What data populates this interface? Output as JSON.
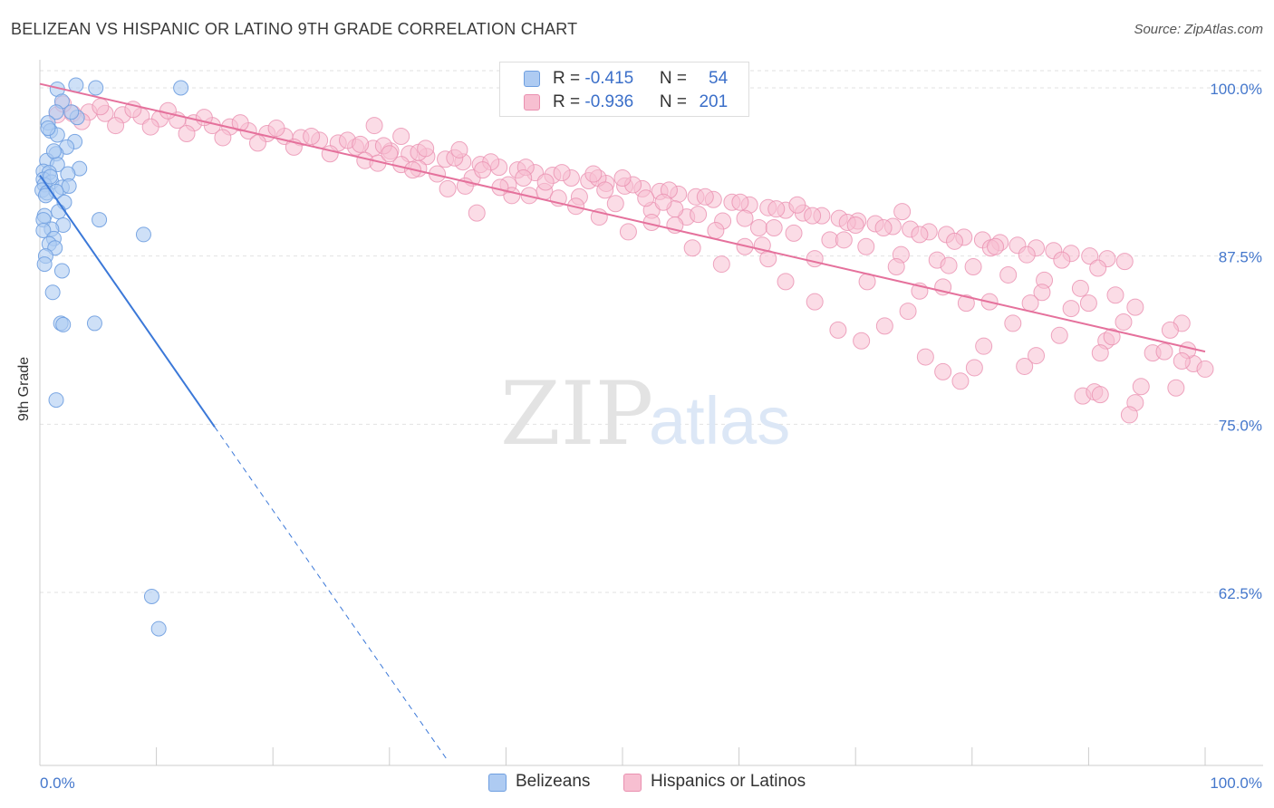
{
  "title": "BELIZEAN VS HISPANIC OR LATINO 9TH GRADE CORRELATION CHART",
  "source": "Source: ZipAtlas.com",
  "watermark": {
    "zip": "ZIP",
    "atlas": "atlas"
  },
  "colors": {
    "belizean_fill": "#aecbf2",
    "belizean_stroke": "#6f9fe0",
    "belizean_line": "#3b78d8",
    "hispanic_fill": "#f7bfd1",
    "hispanic_stroke": "#ea90b0",
    "hispanic_line": "#e5719c",
    "axis_label": "#4477cc"
  },
  "legend_top": {
    "rows": [
      {
        "r_label": "R = ",
        "r_value": "-0.415",
        "n_label": "N = ",
        "n_value": "54"
      },
      {
        "r_label": "R = ",
        "r_value": "-0.936",
        "n_label": "N = ",
        "n_value": "201"
      }
    ]
  },
  "legend_bottom": {
    "items": [
      "Belizeans",
      "Hispanics or Latinos"
    ]
  },
  "chart_data": {
    "type": "scatter",
    "title": "BELIZEAN VS HISPANIC OR LATINO 9TH GRADE CORRELATION CHART",
    "xlabel": "",
    "ylabel": "9th Grade",
    "xlim": [
      0,
      100
    ],
    "ylim": [
      50,
      102
    ],
    "x_tick_labels": [
      "0.0%",
      "100.0%"
    ],
    "y_ticks": [
      100,
      87.5,
      75,
      62.5
    ],
    "y_tick_labels": [
      "100.0%",
      "87.5%",
      "75.0%",
      "62.5%"
    ],
    "grid": true,
    "legend_placement": "top-center",
    "series": [
      {
        "name": "Belizeans",
        "R": -0.415,
        "N": 54,
        "trend": {
          "x": [
            0,
            15
          ],
          "y": [
            93.5,
            74.8
          ],
          "dashed_to": [
            35,
            50
          ]
        },
        "points": [
          [
            3.1,
            100.2
          ],
          [
            12.1,
            100.0
          ],
          [
            4.8,
            100.0
          ],
          [
            1.5,
            99.9
          ],
          [
            1.9,
            99.0
          ],
          [
            1.4,
            98.2
          ],
          [
            3.2,
            97.8
          ],
          [
            2.7,
            98.2
          ],
          [
            0.7,
            97.4
          ],
          [
            0.9,
            96.8
          ],
          [
            1.5,
            96.5
          ],
          [
            3.0,
            96.0
          ],
          [
            2.3,
            95.6
          ],
          [
            1.4,
            95.1
          ],
          [
            0.6,
            94.6
          ],
          [
            1.5,
            94.3
          ],
          [
            3.4,
            94.0
          ],
          [
            0.3,
            93.8
          ],
          [
            0.8,
            93.7
          ],
          [
            2.4,
            93.6
          ],
          [
            0.3,
            93.2
          ],
          [
            1.0,
            93.0
          ],
          [
            0.4,
            92.8
          ],
          [
            1.9,
            92.6
          ],
          [
            2.5,
            92.7
          ],
          [
            0.2,
            92.4
          ],
          [
            0.6,
            92.2
          ],
          [
            1.4,
            92.3
          ],
          [
            0.5,
            92.0
          ],
          [
            2.1,
            91.5
          ],
          [
            1.6,
            90.8
          ],
          [
            0.4,
            90.5
          ],
          [
            0.3,
            90.2
          ],
          [
            5.1,
            90.2
          ],
          [
            2.0,
            89.8
          ],
          [
            1.0,
            89.5
          ],
          [
            0.3,
            89.4
          ],
          [
            1.2,
            88.8
          ],
          [
            8.9,
            89.1
          ],
          [
            0.8,
            88.4
          ],
          [
            1.3,
            88.1
          ],
          [
            0.5,
            87.5
          ],
          [
            0.4,
            86.9
          ],
          [
            1.9,
            86.4
          ],
          [
            1.1,
            84.8
          ],
          [
            1.8,
            82.5
          ],
          [
            2.0,
            82.4
          ],
          [
            4.7,
            82.5
          ],
          [
            1.4,
            76.8
          ],
          [
            9.6,
            62.2
          ],
          [
            10.2,
            59.8
          ],
          [
            0.7,
            97.0
          ],
          [
            1.2,
            95.3
          ],
          [
            0.9,
            93.4
          ]
        ]
      },
      {
        "name": "Hispanics or Latinos",
        "R": -0.936,
        "N": 201,
        "trend": {
          "x": [
            0,
            100
          ],
          "y": [
            100.3,
            80.4
          ]
        },
        "points": [
          [
            1.5,
            98.0
          ],
          [
            2.8,
            98.1
          ],
          [
            4.2,
            98.2
          ],
          [
            5.6,
            98.1
          ],
          [
            7.1,
            98.0
          ],
          [
            8.7,
            97.9
          ],
          [
            10.3,
            97.7
          ],
          [
            11.8,
            97.6
          ],
          [
            13.2,
            97.4
          ],
          [
            14.8,
            97.2
          ],
          [
            16.3,
            97.1
          ],
          [
            17.9,
            96.8
          ],
          [
            19.5,
            96.6
          ],
          [
            21.0,
            96.4
          ],
          [
            22.4,
            96.3
          ],
          [
            24.0,
            96.1
          ],
          [
            25.6,
            95.9
          ],
          [
            27.1,
            95.6
          ],
          [
            28.6,
            95.5
          ],
          [
            30.1,
            95.3
          ],
          [
            31.7,
            95.1
          ],
          [
            33.2,
            94.9
          ],
          [
            34.8,
            94.7
          ],
          [
            36.3,
            94.5
          ],
          [
            37.8,
            94.3
          ],
          [
            39.4,
            94.1
          ],
          [
            41.0,
            93.9
          ],
          [
            42.5,
            93.7
          ],
          [
            44.0,
            93.5
          ],
          [
            45.6,
            93.3
          ],
          [
            47.1,
            93.1
          ],
          [
            48.6,
            92.9
          ],
          [
            50.2,
            92.7
          ],
          [
            51.7,
            92.5
          ],
          [
            53.2,
            92.3
          ],
          [
            54.8,
            92.1
          ],
          [
            56.3,
            91.9
          ],
          [
            57.8,
            91.7
          ],
          [
            59.4,
            91.5
          ],
          [
            60.9,
            91.3
          ],
          [
            62.5,
            91.1
          ],
          [
            64.0,
            90.9
          ],
          [
            65.5,
            90.7
          ],
          [
            67.1,
            90.5
          ],
          [
            68.6,
            90.3
          ],
          [
            70.2,
            90.1
          ],
          [
            71.7,
            89.9
          ],
          [
            73.2,
            89.7
          ],
          [
            74.7,
            89.5
          ],
          [
            76.3,
            89.3
          ],
          [
            77.8,
            89.1
          ],
          [
            79.3,
            88.9
          ],
          [
            80.9,
            88.7
          ],
          [
            82.4,
            88.5
          ],
          [
            83.9,
            88.3
          ],
          [
            85.5,
            88.1
          ],
          [
            87.0,
            87.9
          ],
          [
            88.5,
            87.7
          ],
          [
            90.1,
            87.5
          ],
          [
            91.6,
            87.3
          ],
          [
            93.1,
            87.1
          ],
          [
            2.0,
            98.8
          ],
          [
            3.6,
            97.5
          ],
          [
            5.2,
            98.6
          ],
          [
            6.5,
            97.2
          ],
          [
            8.0,
            98.4
          ],
          [
            9.5,
            97.1
          ],
          [
            11.0,
            98.3
          ],
          [
            12.6,
            96.6
          ],
          [
            14.1,
            97.8
          ],
          [
            15.7,
            96.3
          ],
          [
            17.2,
            97.4
          ],
          [
            18.7,
            95.9
          ],
          [
            20.3,
            97.0
          ],
          [
            21.8,
            95.6
          ],
          [
            23.3,
            96.4
          ],
          [
            24.9,
            95.1
          ],
          [
            26.4,
            96.1
          ],
          [
            27.9,
            94.6
          ],
          [
            29.5,
            95.7
          ],
          [
            31.0,
            94.3
          ],
          [
            32.5,
            95.2
          ],
          [
            34.1,
            93.6
          ],
          [
            35.6,
            94.8
          ],
          [
            37.1,
            93.3
          ],
          [
            38.7,
            94.5
          ],
          [
            40.2,
            92.8
          ],
          [
            41.7,
            94.1
          ],
          [
            43.3,
            92.3
          ],
          [
            44.8,
            93.7
          ],
          [
            46.3,
            91.9
          ],
          [
            47.9,
            93.3
          ],
          [
            49.4,
            91.4
          ],
          [
            50.9,
            92.8
          ],
          [
            52.5,
            90.9
          ],
          [
            54.0,
            92.4
          ],
          [
            55.5,
            90.4
          ],
          [
            57.1,
            91.9
          ],
          [
            58.6,
            90.1
          ],
          [
            60.1,
            91.5
          ],
          [
            61.7,
            89.6
          ],
          [
            63.2,
            91.0
          ],
          [
            64.7,
            89.2
          ],
          [
            66.3,
            90.5
          ],
          [
            67.8,
            88.7
          ],
          [
            69.3,
            90.0
          ],
          [
            70.9,
            88.2
          ],
          [
            72.4,
            89.6
          ],
          [
            73.9,
            87.6
          ],
          [
            75.5,
            89.1
          ],
          [
            77.0,
            87.2
          ],
          [
            78.5,
            88.6
          ],
          [
            80.1,
            86.7
          ],
          [
            81.6,
            88.1
          ],
          [
            83.1,
            86.1
          ],
          [
            84.7,
            87.6
          ],
          [
            86.2,
            85.7
          ],
          [
            87.7,
            87.2
          ],
          [
            89.3,
            85.1
          ],
          [
            90.8,
            86.6
          ],
          [
            92.3,
            84.6
          ],
          [
            28.7,
            97.2
          ],
          [
            33.1,
            95.5
          ],
          [
            38.0,
            93.9
          ],
          [
            43.4,
            93.0
          ],
          [
            50.0,
            93.3
          ],
          [
            54.5,
            91.0
          ],
          [
            60.5,
            90.3
          ],
          [
            65.0,
            91.3
          ],
          [
            70.0,
            89.8
          ],
          [
            74.0,
            90.8
          ],
          [
            78.0,
            86.8
          ],
          [
            82.0,
            88.2
          ],
          [
            86.0,
            84.8
          ],
          [
            90.0,
            84.0
          ],
          [
            94.0,
            83.7
          ],
          [
            98.0,
            82.5
          ],
          [
            31.0,
            96.4
          ],
          [
            36.0,
            95.4
          ],
          [
            41.5,
            93.3
          ],
          [
            47.5,
            93.6
          ],
          [
            52.0,
            91.8
          ],
          [
            56.5,
            90.6
          ],
          [
            63.0,
            89.6
          ],
          [
            69.0,
            88.7
          ],
          [
            73.5,
            86.7
          ],
          [
            77.5,
            85.2
          ],
          [
            81.5,
            84.1
          ],
          [
            85.0,
            84.0
          ],
          [
            88.5,
            83.6
          ],
          [
            93.0,
            82.6
          ],
          [
            97.0,
            82.0
          ],
          [
            29.0,
            94.4
          ],
          [
            32.5,
            94.0
          ],
          [
            36.5,
            92.7
          ],
          [
            40.5,
            92.0
          ],
          [
            48.5,
            92.4
          ],
          [
            53.5,
            91.5
          ],
          [
            58.0,
            89.4
          ],
          [
            62.0,
            88.3
          ],
          [
            66.5,
            87.3
          ],
          [
            71.0,
            85.6
          ],
          [
            75.5,
            84.9
          ],
          [
            79.5,
            84.0
          ],
          [
            83.5,
            82.5
          ],
          [
            87.5,
            81.6
          ],
          [
            91.5,
            81.2
          ],
          [
            95.5,
            80.3
          ],
          [
            99.0,
            79.5
          ],
          [
            84.5,
            79.3
          ],
          [
            89.5,
            77.1
          ],
          [
            94.5,
            77.8
          ],
          [
            97.5,
            77.7
          ],
          [
            92.0,
            81.5
          ],
          [
            96.5,
            80.4
          ],
          [
            98.5,
            80.5
          ],
          [
            91.0,
            80.3
          ],
          [
            85.5,
            80.1
          ],
          [
            81.0,
            80.8
          ],
          [
            80.2,
            79.2
          ],
          [
            79.0,
            78.2
          ],
          [
            77.5,
            78.9
          ],
          [
            76.0,
            80.0
          ],
          [
            74.5,
            83.4
          ],
          [
            72.5,
            82.3
          ],
          [
            70.5,
            81.2
          ],
          [
            68.5,
            82.0
          ],
          [
            66.5,
            84.1
          ],
          [
            64.0,
            85.6
          ],
          [
            62.5,
            87.3
          ],
          [
            60.5,
            88.2
          ],
          [
            58.5,
            86.9
          ],
          [
            56.0,
            88.1
          ],
          [
            54.5,
            89.8
          ],
          [
            52.5,
            90.0
          ],
          [
            50.5,
            89.3
          ],
          [
            48.0,
            90.4
          ],
          [
            46.0,
            91.2
          ],
          [
            44.5,
            91.8
          ],
          [
            42.0,
            92.0
          ],
          [
            39.5,
            92.6
          ],
          [
            37.5,
            90.7
          ],
          [
            35.0,
            92.5
          ],
          [
            32.0,
            93.9
          ],
          [
            30.0,
            95.1
          ],
          [
            27.5,
            95.8
          ],
          [
            90.5,
            77.4
          ],
          [
            94.0,
            76.6
          ],
          [
            93.5,
            75.7
          ],
          [
            91.0,
            77.2
          ],
          [
            98.0,
            79.7
          ],
          [
            100.0,
            79.1
          ]
        ]
      }
    ]
  }
}
